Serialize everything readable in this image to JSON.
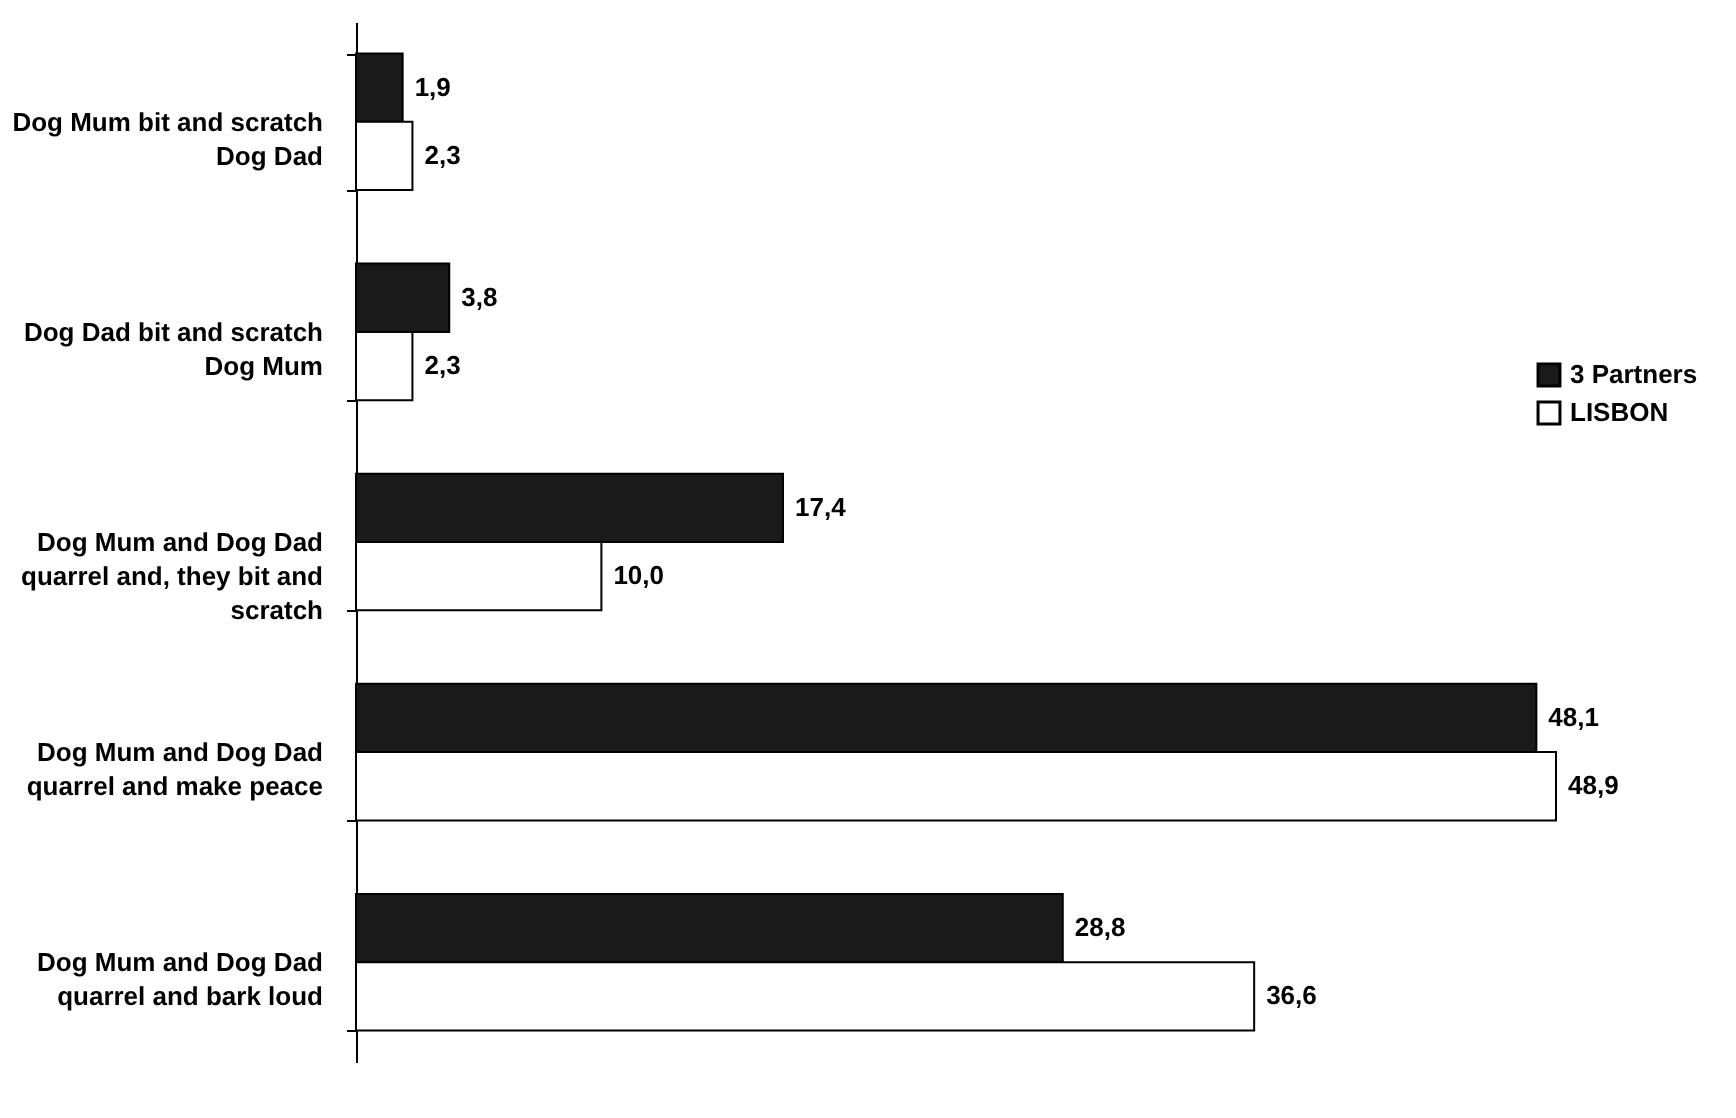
{
  "chart_data": {
    "type": "bar",
    "orientation": "horizontal",
    "categories": [
      "Dog Mum bit and scratch\nDog Dad",
      "Dog Dad bit and scratch\nDog Mum",
      "Dog Mum and Dog Dad\nquarrel and, they bit and\nscratch",
      "Dog Mum and Dog Dad\nquarrel and make peace",
      "Dog Mum and Dog Dad\nquarrel and bark loud"
    ],
    "series": [
      {
        "name": "3 Partners",
        "color": "#1a1a1a",
        "values": [
          1.9,
          3.8,
          17.4,
          48.1,
          28.8
        ],
        "value_labels": [
          "1,9",
          "3,8",
          "17,4",
          "48,1",
          "28,8"
        ]
      },
      {
        "name": "LISBON",
        "color": "#ffffff",
        "values": [
          2.3,
          2.3,
          10.0,
          48.9,
          36.6
        ],
        "value_labels": [
          "2,3",
          "2,3",
          "10,0",
          "48,9",
          "36,6"
        ]
      }
    ],
    "legend": "right",
    "grid": false
  }
}
